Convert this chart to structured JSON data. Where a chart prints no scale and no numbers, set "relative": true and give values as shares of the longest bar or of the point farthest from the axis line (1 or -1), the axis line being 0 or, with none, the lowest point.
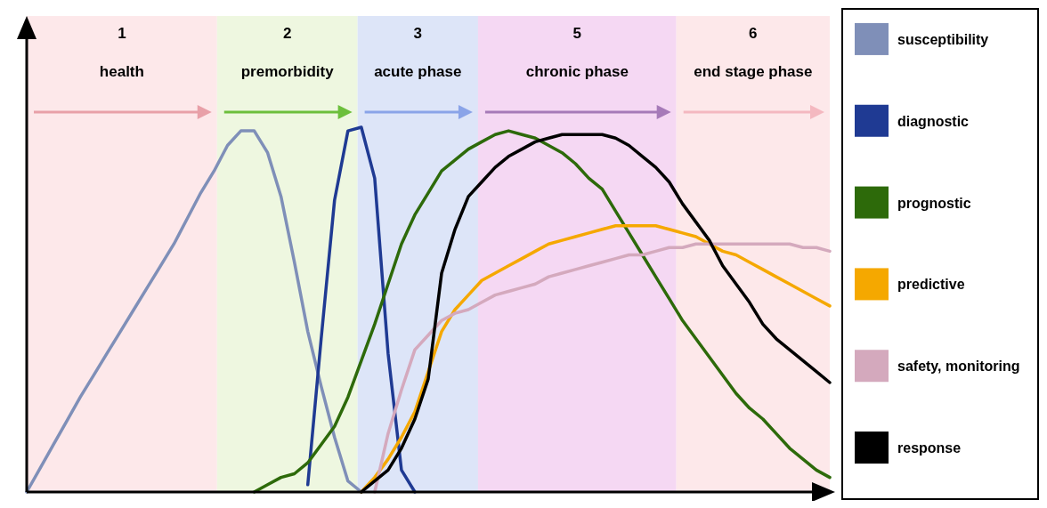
{
  "chart_data": {
    "type": "line",
    "relative": true,
    "legend": "right",
    "line_style": "solid",
    "categories": [
      null,
      null,
      null,
      null,
      null,
      null,
      null,
      null,
      null,
      null,
      null,
      null,
      null,
      null,
      null,
      null,
      null,
      null,
      null,
      null,
      null,
      null,
      null,
      null,
      null,
      null,
      null,
      null,
      null,
      null,
      null,
      null,
      null,
      null,
      null,
      null,
      null,
      null,
      null,
      null,
      null,
      null,
      null,
      null,
      null,
      null,
      null,
      null,
      null,
      null,
      null,
      null,
      null,
      null,
      null,
      null,
      null,
      null,
      null,
      null,
      null
    ],
    "annotations": [
      "1",
      "health",
      "2",
      "premorbidity",
      "3",
      "acute phase",
      "5",
      "chronic phase",
      "6",
      "end stage phase"
    ],
    "series": [
      {
        "name": "susceptibility",
        "color": "#7f8fb8",
        "values": [
          0,
          0.065,
          0.13,
          0.195,
          0.26,
          0.32,
          0.38,
          0.44,
          0.5,
          0.56,
          0.62,
          0.68,
          0.75,
          0.82,
          0.88,
          0.95,
          0.99,
          0.99,
          0.93,
          0.81,
          0.63,
          0.44,
          0.29,
          0.15,
          0.03,
          0,
          null,
          null,
          null,
          null,
          null,
          null,
          null,
          null,
          null,
          null,
          null,
          null,
          null,
          null,
          null,
          null,
          null,
          null,
          null,
          null,
          null,
          null,
          null,
          null,
          null,
          null,
          null,
          null,
          null,
          null,
          null,
          null,
          null,
          null,
          null
        ]
      },
      {
        "name": "diagnostic",
        "color": "#1f3a93",
        "values": [
          null,
          null,
          null,
          null,
          null,
          null,
          null,
          null,
          null,
          null,
          null,
          null,
          null,
          null,
          null,
          null,
          null,
          null,
          null,
          null,
          null,
          0.02,
          0.42,
          0.8,
          0.99,
          1,
          0.86,
          0.38,
          0.06,
          0,
          null,
          null,
          null,
          null,
          null,
          null,
          null,
          null,
          null,
          null,
          null,
          null,
          null,
          null,
          null,
          null,
          null,
          null,
          null,
          null,
          null,
          null,
          null,
          null,
          null,
          null,
          null,
          null,
          null,
          null,
          null
        ]
      },
      {
        "name": "prognostic",
        "color": "#2d6a0a",
        "values": [
          null,
          null,
          null,
          null,
          null,
          null,
          null,
          null,
          null,
          null,
          null,
          null,
          null,
          null,
          null,
          null,
          null,
          0,
          0.02,
          0.04,
          0.05,
          0.08,
          0.13,
          0.18,
          0.26,
          0.36,
          0.46,
          0.57,
          0.68,
          0.76,
          0.82,
          0.88,
          0.91,
          0.94,
          0.96,
          0.98,
          0.99,
          0.98,
          0.97,
          0.95,
          0.93,
          0.9,
          0.86,
          0.83,
          0.77,
          0.71,
          0.65,
          0.59,
          0.53,
          0.47,
          0.42,
          0.37,
          0.32,
          0.27,
          0.23,
          0.2,
          0.16,
          0.12,
          0.09,
          0.06,
          0.04
        ]
      },
      {
        "name": "predictive",
        "color": "#f5a800",
        "values": [
          null,
          null,
          null,
          null,
          null,
          null,
          null,
          null,
          null,
          null,
          null,
          null,
          null,
          null,
          null,
          null,
          null,
          null,
          null,
          null,
          null,
          null,
          null,
          null,
          null,
          0,
          0.04,
          0.09,
          0.15,
          0.22,
          0.33,
          0.44,
          0.5,
          0.54,
          0.58,
          0.6,
          0.62,
          0.64,
          0.66,
          0.68,
          0.69,
          0.7,
          0.71,
          0.72,
          0.73,
          0.73,
          0.73,
          0.73,
          0.72,
          0.71,
          0.7,
          0.68,
          0.66,
          0.65,
          0.63,
          0.61,
          0.59,
          0.57,
          0.55,
          0.53,
          0.51
        ]
      },
      {
        "name": "safety, monitoring",
        "color": "#d4a9bd",
        "values": [
          null,
          null,
          null,
          null,
          null,
          null,
          null,
          null,
          null,
          null,
          null,
          null,
          null,
          null,
          null,
          null,
          null,
          null,
          null,
          null,
          null,
          null,
          null,
          null,
          null,
          null,
          0,
          0.16,
          0.28,
          0.39,
          0.43,
          0.47,
          0.49,
          0.5,
          0.52,
          0.54,
          0.55,
          0.56,
          0.57,
          0.59,
          0.6,
          0.61,
          0.62,
          0.63,
          0.64,
          0.65,
          0.65,
          0.66,
          0.67,
          0.67,
          0.68,
          0.68,
          0.68,
          0.68,
          0.68,
          0.68,
          0.68,
          0.68,
          0.67,
          0.67,
          0.66
        ]
      },
      {
        "name": "response",
        "color": "#000000",
        "values": [
          null,
          null,
          null,
          null,
          null,
          null,
          null,
          null,
          null,
          null,
          null,
          null,
          null,
          null,
          null,
          null,
          null,
          null,
          null,
          null,
          null,
          null,
          null,
          null,
          null,
          0,
          0.03,
          0.06,
          0.12,
          0.2,
          0.31,
          0.6,
          0.72,
          0.81,
          0.85,
          0.89,
          0.92,
          0.94,
          0.96,
          0.97,
          0.98,
          0.98,
          0.98,
          0.98,
          0.97,
          0.95,
          0.92,
          0.89,
          0.85,
          0.79,
          0.74,
          0.69,
          0.62,
          0.57,
          0.52,
          0.46,
          0.42,
          0.39,
          0.36,
          0.33,
          0.3
        ]
      }
    ]
  }
}
